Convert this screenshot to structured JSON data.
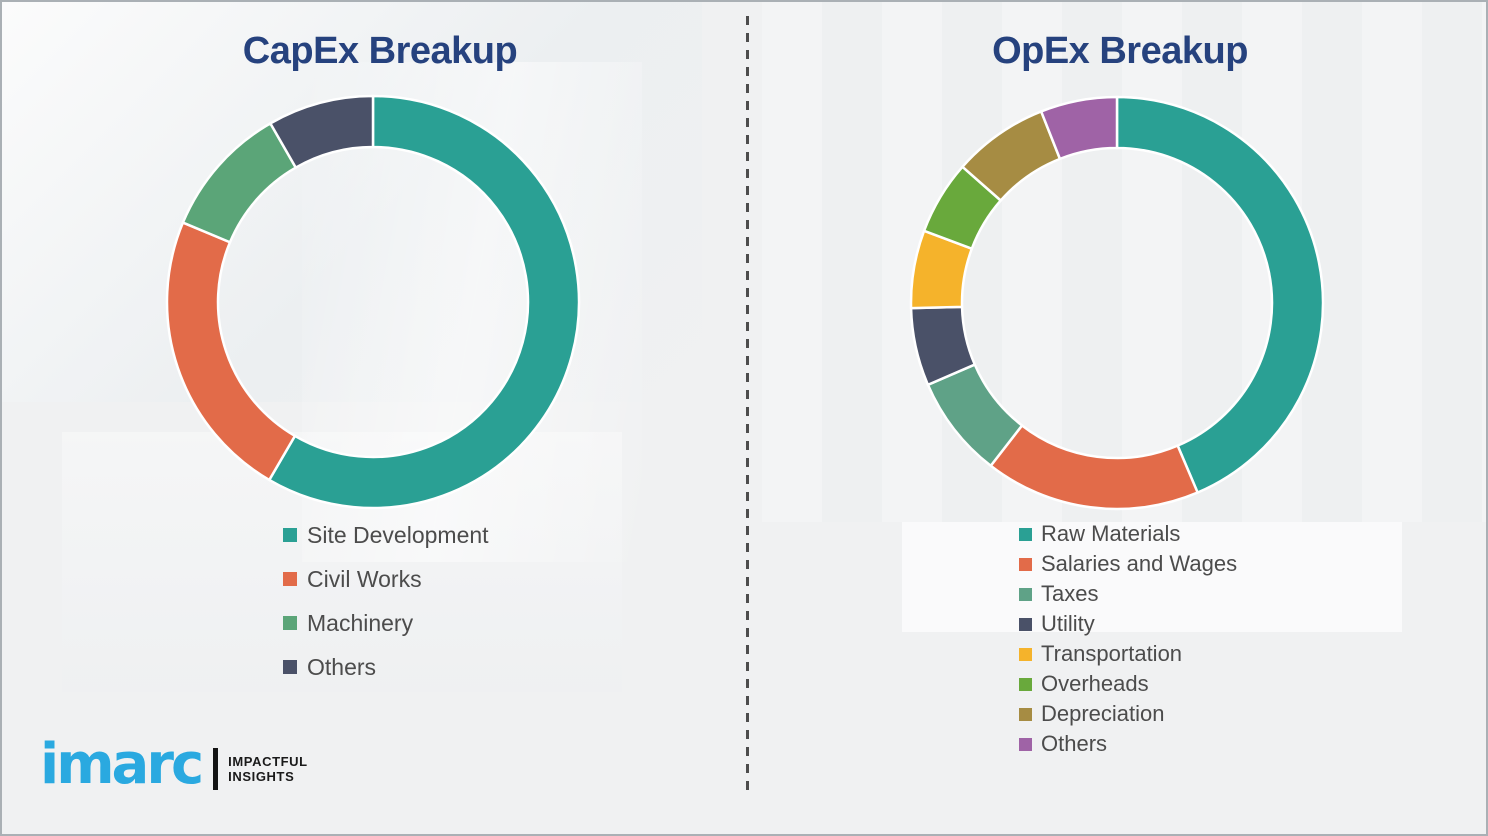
{
  "page": {
    "background_color": "#f0f1f2",
    "divider_style": "vertical dashed line separating the two charts"
  },
  "logo": {
    "brand": "imarc",
    "brand_color": "#2AA9E0",
    "tagline_line1": "IMPACTFUL",
    "tagline_line2": "INSIGHTS"
  },
  "chart_data": [
    {
      "type": "pie",
      "variant": "donut",
      "title": "CapEx Breakup",
      "legend_position": "below-left",
      "categories": [
        "Site Development",
        "Civil Works",
        "Machinery",
        "Others"
      ],
      "values": [
        58.4,
        22.9,
        10.4,
        8.3
      ],
      "unit": "percent-of-ring",
      "colors": [
        "#2AA094",
        "#E26B49",
        "#5BA578",
        "#4A5168"
      ],
      "start_angle_deg": 0,
      "direction": "clockwise",
      "outer_radius_px": 206,
      "inner_radius_px": 155
    },
    {
      "type": "pie",
      "variant": "donut",
      "title": "OpEx Breakup",
      "legend_position": "below-left",
      "categories": [
        "Raw Materials",
        "Salaries and Wages",
        "Taxes",
        "Utility",
        "Transportation",
        "Overheads",
        "Depreciation",
        "Others"
      ],
      "values": [
        43.6,
        16.9,
        8.0,
        6.1,
        6.1,
        5.8,
        7.5,
        6.0
      ],
      "unit": "percent-of-ring",
      "colors": [
        "#2AA094",
        "#E26B49",
        "#5FA287",
        "#4A5168",
        "#F5B32B",
        "#69A93C",
        "#A68C43",
        "#9F63A6"
      ],
      "start_angle_deg": 0,
      "direction": "clockwise",
      "outer_radius_px": 206,
      "inner_radius_px": 155
    }
  ]
}
